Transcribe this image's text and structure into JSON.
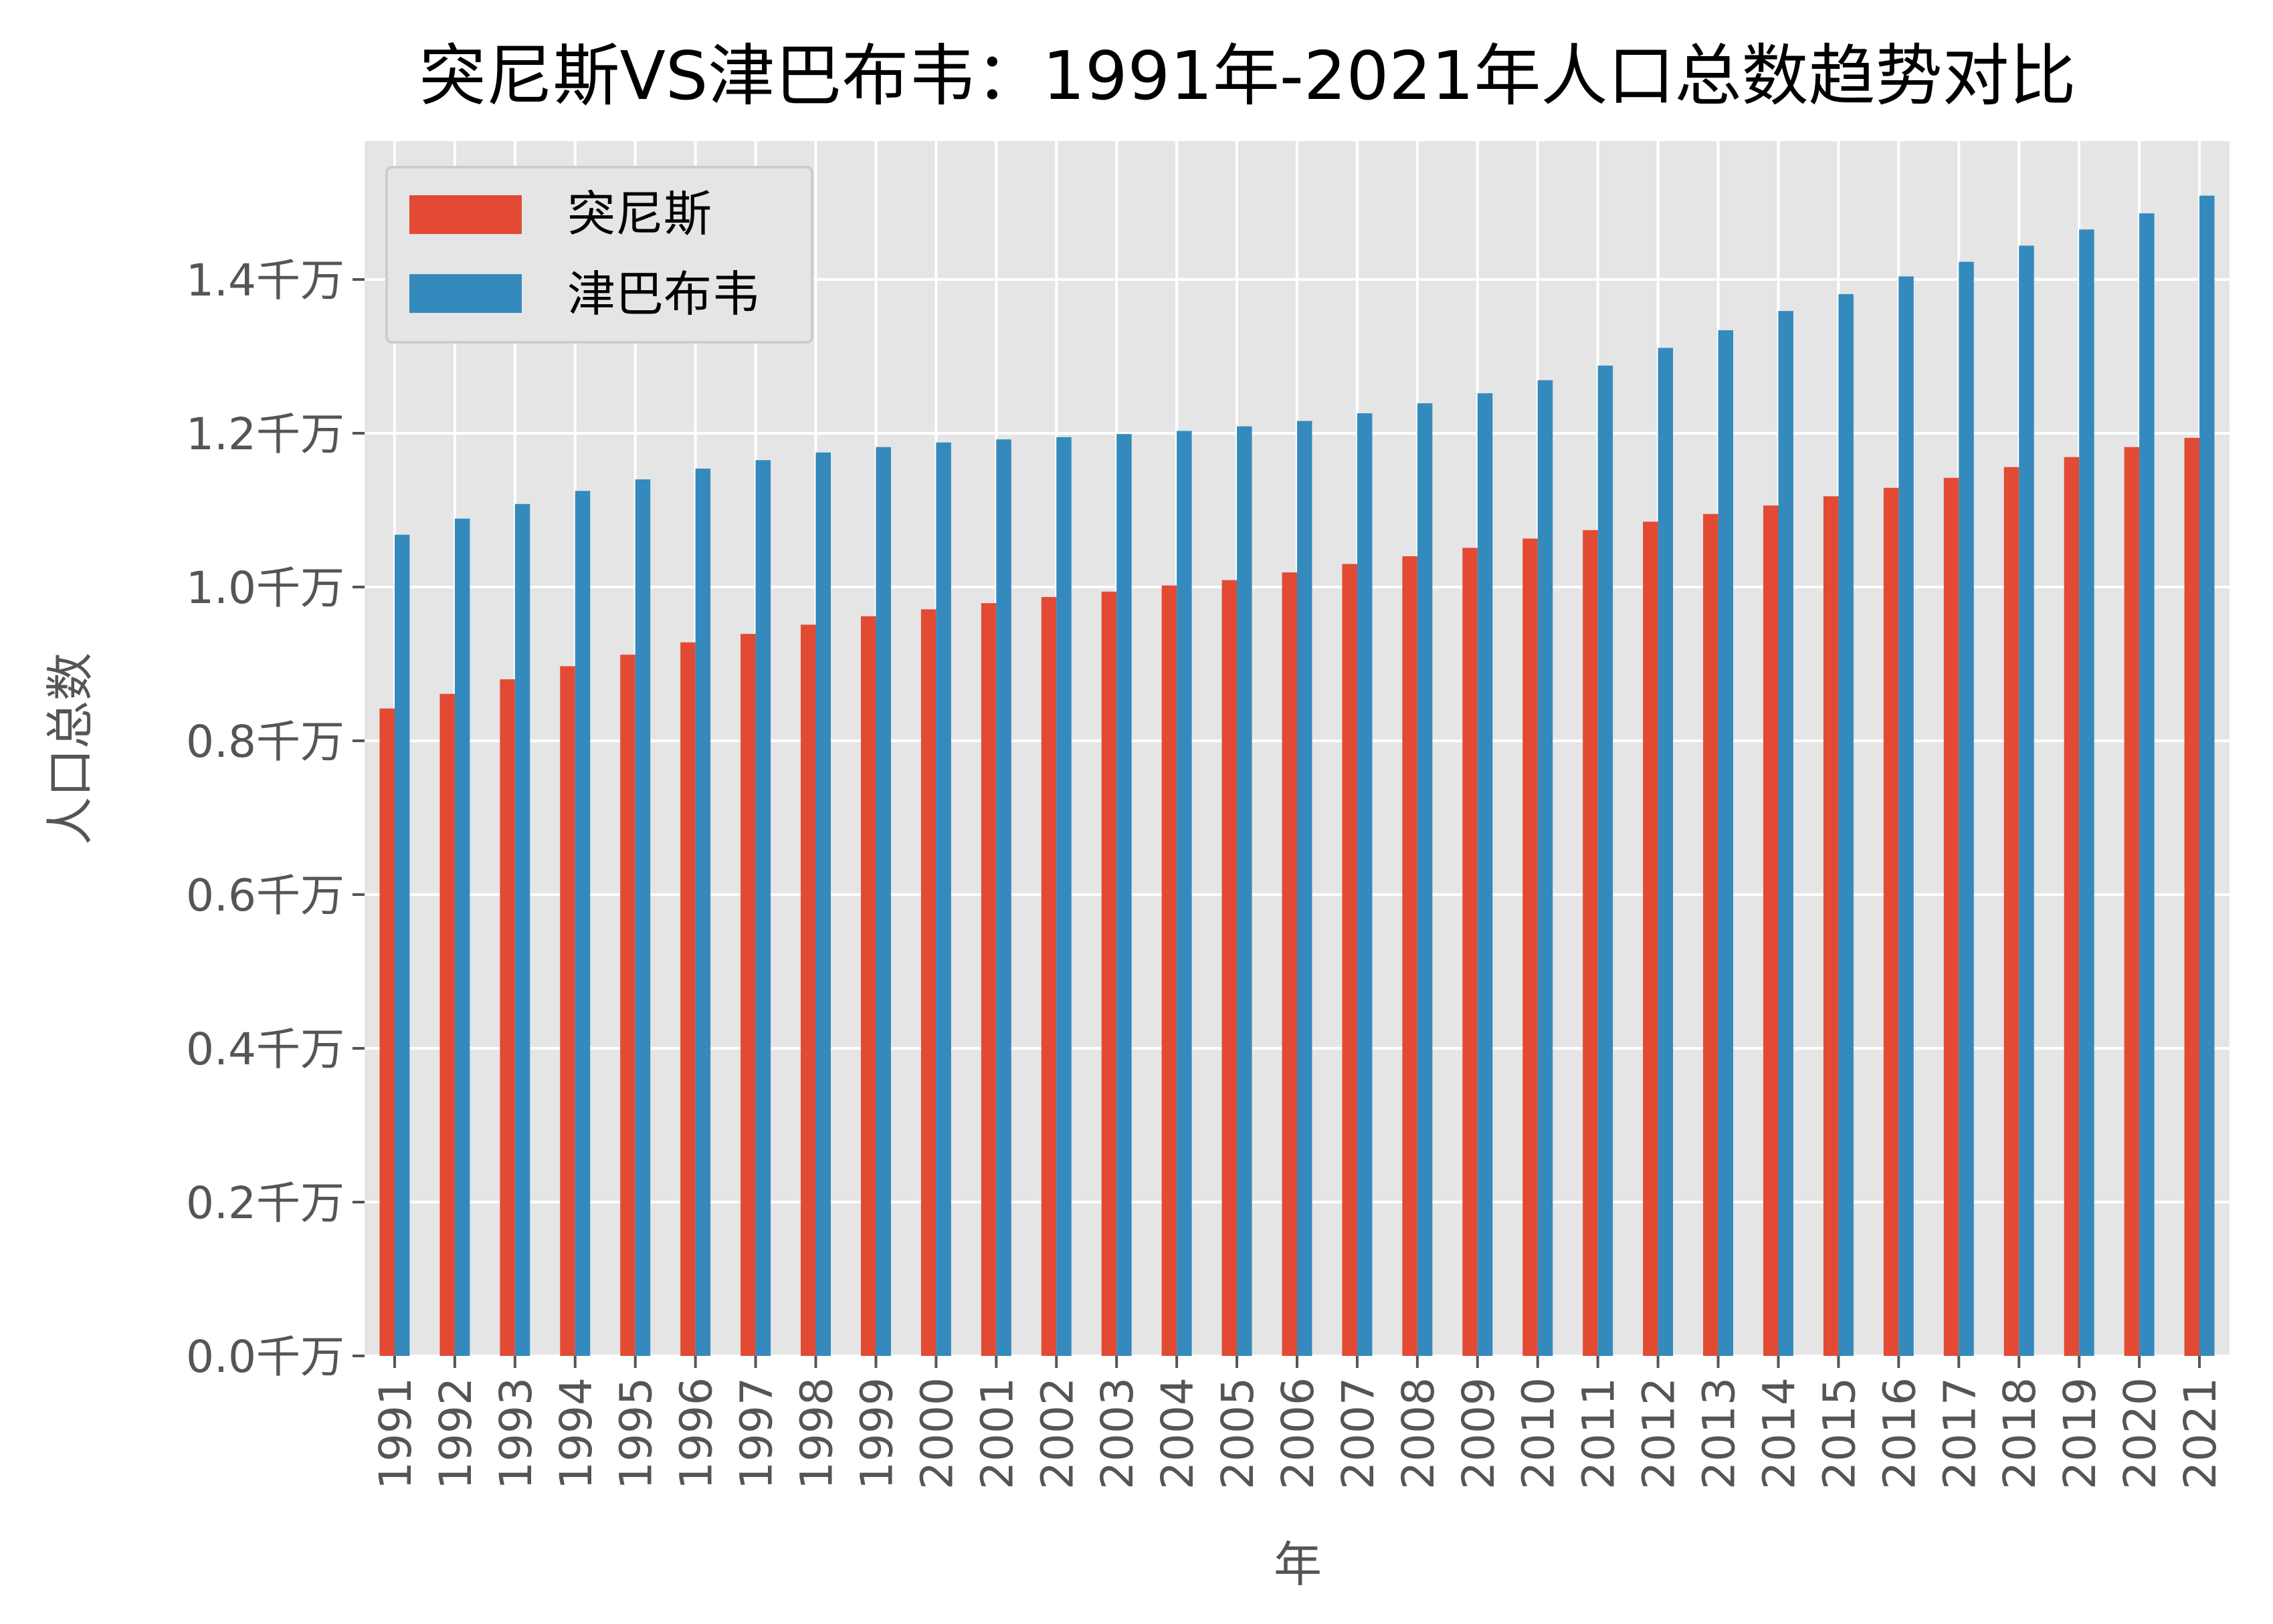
{
  "chart_data": {
    "type": "bar",
    "title": "突尼斯VS津巴布韦：1991年-2021年人口总数趋势对比",
    "xlabel": "年",
    "ylabel": "人口总数",
    "ylim": [
      0,
      1.58
    ],
    "y_unit": "千万",
    "yticks": [
      0.0,
      0.2,
      0.4,
      0.6,
      0.8,
      1.0,
      1.2,
      1.4
    ],
    "ytick_labels": [
      "0.0千万",
      "0.2千万",
      "0.4千万",
      "0.6千万",
      "0.8千万",
      "1.0千万",
      "1.2千万",
      "1.4千万"
    ],
    "grid": true,
    "legend_position": "top-left",
    "categories": [
      "1991",
      "1992",
      "1993",
      "1994",
      "1995",
      "1996",
      "1997",
      "1998",
      "1999",
      "2000",
      "2001",
      "2002",
      "2003",
      "2004",
      "2005",
      "2006",
      "2007",
      "2008",
      "2009",
      "2010",
      "2011",
      "2012",
      "2013",
      "2014",
      "2015",
      "2016",
      "2017",
      "2018",
      "2019",
      "2020",
      "2021"
    ],
    "series": [
      {
        "name": "突尼斯",
        "color": "#E24A33",
        "values": [
          0.842,
          0.861,
          0.88,
          0.897,
          0.912,
          0.928,
          0.939,
          0.951,
          0.962,
          0.971,
          0.979,
          0.987,
          0.994,
          1.002,
          1.009,
          1.019,
          1.03,
          1.04,
          1.051,
          1.063,
          1.074,
          1.085,
          1.095,
          1.106,
          1.118,
          1.129,
          1.142,
          1.156,
          1.169,
          1.182,
          1.194
        ]
      },
      {
        "name": "津巴布韦",
        "color": "#348ABD",
        "values": [
          1.068,
          1.089,
          1.108,
          1.125,
          1.14,
          1.154,
          1.165,
          1.175,
          1.182,
          1.188,
          1.192,
          1.195,
          1.199,
          1.203,
          1.209,
          1.216,
          1.226,
          1.239,
          1.252,
          1.269,
          1.288,
          1.311,
          1.334,
          1.359,
          1.381,
          1.404,
          1.423,
          1.444,
          1.465,
          1.486,
          1.509
        ]
      }
    ]
  }
}
